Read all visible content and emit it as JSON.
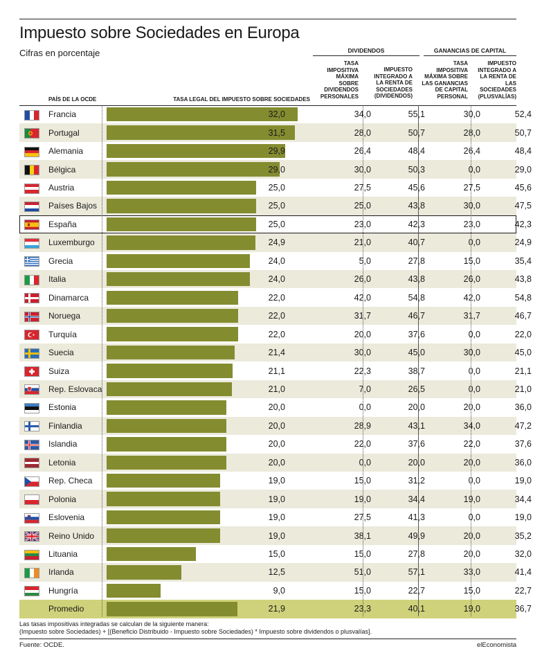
{
  "title": "Impuesto sobre Sociedades en Europa",
  "subtitle": "Cifras en porcentaje",
  "groups": {
    "dividendos": "DIVIDENDOS",
    "ganancias": "GANANCIAS DE CAPITAL"
  },
  "columns": {
    "pais": "PAÍS DE LA OCDE",
    "tasa_legal": "TASA LEGAL DEL IMPUESTO SOBRE SOCIEDADES",
    "div_tasa": [
      "TASA",
      "IMPOSITIVA",
      "MÁXIMA",
      "SOBRE",
      "DIVIDENDOS",
      "PERSONALES"
    ],
    "div_integrado": [
      "IMPUESTO",
      "INTEGRADO A",
      "LA RENTA DE",
      "SOCIEDADES",
      "(DIVIDENDOS)"
    ],
    "gan_tasa": [
      "TASA",
      "IMPOSITIVA",
      "MÁXIMA SOBRE",
      "LAS GANANCIAS",
      "DE CAPITAL",
      "PERSONAL"
    ],
    "gan_integrado": [
      "IMPUESTO",
      "INTEGRADO A",
      "LA RENTA DE",
      "LAS",
      "SOCIEDADES",
      "(PLUSVALÍAS)"
    ]
  },
  "chart_data": {
    "type": "bar",
    "title": "Impuesto sobre Sociedades en Europa",
    "subtitle": "Cifras en porcentaje",
    "xlabel": "TASA LEGAL DEL IMPUESTO SOBRE SOCIEDADES",
    "xlim": [
      0,
      32
    ],
    "categories": [
      "Francia",
      "Portugal",
      "Alemania",
      "Bélgica",
      "Austria",
      "Países Bajos",
      "España",
      "Luxemburgo",
      "Grecia",
      "Italia",
      "Dinamarca",
      "Noruega",
      "Turquía",
      "Suecia",
      "Suiza",
      "Rep. Eslovaca",
      "Estonia",
      "Finlandia",
      "Islandia",
      "Letonia",
      "Rep. Checa",
      "Polonia",
      "Eslovenia",
      "Reino Unido",
      "Lituania",
      "Irlanda",
      "Hungría",
      "Promedio"
    ],
    "series": [
      {
        "name": "TASA LEGAL DEL IMPUESTO SOBRE SOCIEDADES",
        "values": [
          "32,0",
          "31,5",
          "29,9",
          "29,0",
          "25,0",
          "25,0",
          "25,0",
          "24,9",
          "24,0",
          "24,0",
          "22,0",
          "22,0",
          "22,0",
          "21,4",
          "21,1",
          "21,0",
          "20,0",
          "20,0",
          "20,0",
          "20,0",
          "19,0",
          "19,0",
          "19,0",
          "19,0",
          "15,0",
          "12,5",
          "9,0",
          "21,9"
        ]
      },
      {
        "name": "TASA IMPOSITIVA MÁXIMA SOBRE DIVIDENDOS PERSONALES",
        "values": [
          "34,0",
          "28,0",
          "26,4",
          "30,0",
          "27,5",
          "25,0",
          "23,0",
          "21,0",
          "5,0",
          "26,0",
          "42,0",
          "31,7",
          "20,0",
          "30,0",
          "22,3",
          "7,0",
          "0,0",
          "28,9",
          "22,0",
          "0,0",
          "15,0",
          "19,0",
          "27,5",
          "38,1",
          "15,0",
          "51,0",
          "15,0",
          "23,3"
        ]
      },
      {
        "name": "IMPUESTO INTEGRADO A LA RENTA DE SOCIEDADES (DIVIDENDOS)",
        "values": [
          "55,1",
          "50,7",
          "48,4",
          "50,3",
          "45,6",
          "43,8",
          "42,3",
          "40,7",
          "27,8",
          "43,8",
          "54,8",
          "46,7",
          "37,6",
          "45,0",
          "38,7",
          "26,5",
          "20,0",
          "43,1",
          "37,6",
          "20,0",
          "31,2",
          "34,4",
          "41,3",
          "49,9",
          "27,8",
          "57,1",
          "22,7",
          "40,1"
        ]
      },
      {
        "name": "TASA IMPOSITIVA MÁXIMA SOBRE LAS GANANCIAS DE CAPITAL PERSONAL",
        "values": [
          "30,0",
          "28,0",
          "26,4",
          "0,0",
          "27,5",
          "30,0",
          "23,0",
          "0,0",
          "15,0",
          "26,0",
          "42,0",
          "31,7",
          "0,0",
          "30,0",
          "0,0",
          "0,0",
          "20,0",
          "34,0",
          "22,0",
          "20,0",
          "0,0",
          "19,0",
          "0,0",
          "20,0",
          "20,0",
          "33,0",
          "15,0",
          "19,0"
        ]
      },
      {
        "name": "IMPUESTO INTEGRADO A LA RENTA DE LAS SOCIEDADES (PLUSVALÍAS)",
        "values": [
          "52,4",
          "50,7",
          "48,4",
          "29,0",
          "45,6",
          "47,5",
          "42,3",
          "24,9",
          "35,4",
          "43,8",
          "54,8",
          "46,7",
          "22,0",
          "45,0",
          "21,1",
          "21,0",
          "36,0",
          "47,2",
          "37,6",
          "36,0",
          "19,0",
          "34,4",
          "19,0",
          "35,2",
          "32,0",
          "41,4",
          "22,7",
          "36,7"
        ]
      }
    ],
    "highlighted": "España",
    "average_label": "Promedio"
  },
  "flags": [
    "fr",
    "pt",
    "de",
    "be",
    "at",
    "nl",
    "es",
    "lu",
    "gr",
    "it",
    "dk",
    "no",
    "tr",
    "se",
    "ch",
    "sk",
    "ee",
    "fi",
    "is",
    "lv",
    "cz",
    "pl",
    "si",
    "gb",
    "lt",
    "ie",
    "hu"
  ],
  "colors": {
    "bar": "#848c30",
    "stripe": "#ebeadb",
    "average": "#cfd27a"
  },
  "footnote": [
    "Las tasas impositivas integradas se calculan de la siguiente manera:",
    "(Impuesto sobre Sociedades) + [(Beneficio Distribuido - Impuesto sobre Sociedades) * Impuesto sobre dividendos o plusvalías]."
  ],
  "source": "Fuente: OCDE.",
  "brand": "elEconomista"
}
